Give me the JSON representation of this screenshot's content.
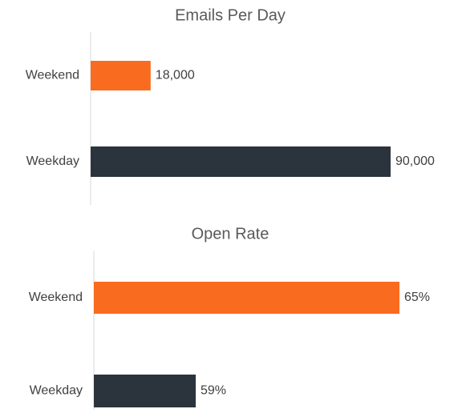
{
  "chart_data": [
    {
      "type": "bar",
      "orientation": "horizontal",
      "title": "Emails Per Day",
      "categories": [
        "Weekend",
        "Weekday"
      ],
      "values": [
        18000,
        90000
      ],
      "value_labels": [
        "18,000",
        "90,000"
      ],
      "colors": [
        "#f96b1e",
        "#2b343d"
      ],
      "xlim": [
        0,
        90000
      ]
    },
    {
      "type": "bar",
      "orientation": "horizontal",
      "title": "Open Rate",
      "categories": [
        "Weekend",
        "Weekday"
      ],
      "values": [
        65,
        59
      ],
      "value_labels": [
        "65%",
        "59%"
      ],
      "colors": [
        "#f96b1e",
        "#2b343d"
      ],
      "xlim": [
        56,
        65
      ]
    }
  ]
}
